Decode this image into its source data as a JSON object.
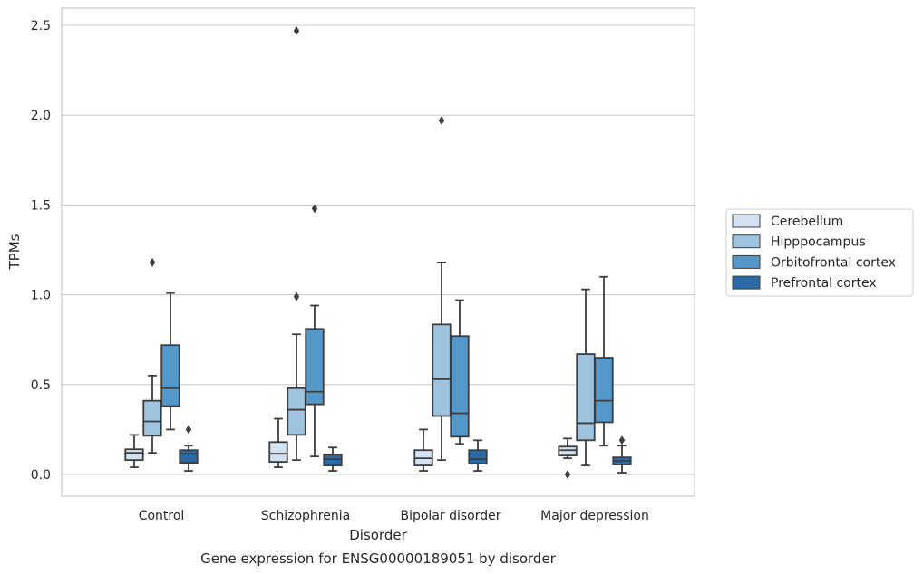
{
  "caption": "Gene expression for ENSG00000189051 by disorder",
  "chart_data": {
    "type": "box",
    "xlabel": "Disorder",
    "ylabel": "TPMs",
    "ylim": [
      -0.12,
      2.6
    ],
    "yticks": [
      0.0,
      0.5,
      1.0,
      1.5,
      2.0,
      2.5
    ],
    "ytick_labels": [
      "0.0",
      "0.5",
      "1.0",
      "1.5",
      "2.0",
      "2.5"
    ],
    "grid": "horizontal",
    "legend_placement": "right",
    "categories": [
      "Control",
      "Schizophrenia",
      "Bipolar disorder",
      "Major depression"
    ],
    "series": [
      {
        "name": "Cerebellum",
        "color": "#d3e2f1",
        "boxes": [
          {
            "whislo": 0.04,
            "q1": 0.08,
            "med": 0.12,
            "q3": 0.14,
            "whishi": 0.22,
            "fliers": []
          },
          {
            "whislo": 0.04,
            "q1": 0.07,
            "med": 0.115,
            "q3": 0.18,
            "whishi": 0.31,
            "fliers": []
          },
          {
            "whislo": 0.02,
            "q1": 0.05,
            "med": 0.09,
            "q3": 0.135,
            "whishi": 0.25,
            "fliers": []
          },
          {
            "whislo": 0.09,
            "q1": 0.105,
            "med": 0.135,
            "q3": 0.155,
            "whishi": 0.2,
            "fliers": [
              0.0
            ]
          }
        ]
      },
      {
        "name": "Hipppocampus",
        "color": "#9dc3de",
        "boxes": [
          {
            "whislo": 0.12,
            "q1": 0.215,
            "med": 0.295,
            "q3": 0.41,
            "whishi": 0.55,
            "fliers": [
              1.18
            ]
          },
          {
            "whislo": 0.08,
            "q1": 0.22,
            "med": 0.36,
            "q3": 0.48,
            "whishi": 0.78,
            "fliers": [
              0.99,
              2.47
            ]
          },
          {
            "whislo": 0.08,
            "q1": 0.325,
            "med": 0.53,
            "q3": 0.835,
            "whishi": 1.18,
            "fliers": [
              1.97
            ]
          },
          {
            "whislo": 0.05,
            "q1": 0.19,
            "med": 0.285,
            "q3": 0.67,
            "whishi": 1.03,
            "fliers": []
          }
        ]
      },
      {
        "name": "Orbitofrontal cortex",
        "color": "#5498c9",
        "boxes": [
          {
            "whislo": 0.25,
            "q1": 0.38,
            "med": 0.48,
            "q3": 0.72,
            "whishi": 1.01,
            "fliers": []
          },
          {
            "whislo": 0.1,
            "q1": 0.39,
            "med": 0.46,
            "q3": 0.81,
            "whishi": 0.94,
            "fliers": [
              1.48
            ]
          },
          {
            "whislo": 0.17,
            "q1": 0.21,
            "med": 0.34,
            "q3": 0.77,
            "whishi": 0.97,
            "fliers": []
          },
          {
            "whislo": 0.16,
            "q1": 0.29,
            "med": 0.41,
            "q3": 0.65,
            "whishi": 1.1,
            "fliers": []
          }
        ]
      },
      {
        "name": "Prefrontal cortex",
        "color": "#2b6aa5",
        "boxes": [
          {
            "whislo": 0.02,
            "q1": 0.065,
            "med": 0.115,
            "q3": 0.135,
            "whishi": 0.16,
            "fliers": [
              0.25
            ]
          },
          {
            "whislo": 0.02,
            "q1": 0.05,
            "med": 0.085,
            "q3": 0.11,
            "whishi": 0.15,
            "fliers": []
          },
          {
            "whislo": 0.02,
            "q1": 0.06,
            "med": 0.085,
            "q3": 0.135,
            "whishi": 0.19,
            "fliers": []
          },
          {
            "whislo": 0.01,
            "q1": 0.055,
            "med": 0.075,
            "q3": 0.095,
            "whishi": 0.16,
            "fliers": [
              0.19
            ]
          }
        ]
      }
    ]
  }
}
